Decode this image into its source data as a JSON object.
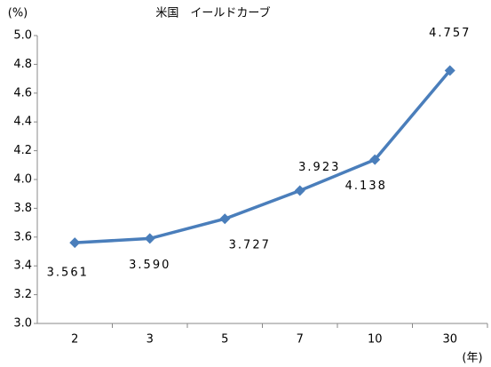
{
  "chart_data": {
    "type": "line",
    "title": "米国　イールドカーブ",
    "y_label": "(%)",
    "x_label": "(年)",
    "categories": [
      "2",
      "3",
      "5",
      "7",
      "10",
      "30"
    ],
    "series": [
      {
        "name": "米国",
        "color": "#4a7ebb",
        "values": [
          3.561,
          3.59,
          3.727,
          3.923,
          4.138,
          4.757
        ],
        "value_labels": [
          "3.561",
          "3.590",
          "3.727",
          "3.923",
          "4.138",
          "4.757"
        ]
      }
    ],
    "ylim": [
      3,
      5
    ],
    "yticks": [
      {
        "value": 3,
        "label": "3.0"
      },
      3.2,
      3.4,
      3.6,
      3.8,
      {
        "value": 4,
        "label": "4.0"
      },
      4.2,
      4.4,
      4.6,
      4.8,
      {
        "value": 5,
        "label": "5.0"
      }
    ],
    "grid": false
  }
}
